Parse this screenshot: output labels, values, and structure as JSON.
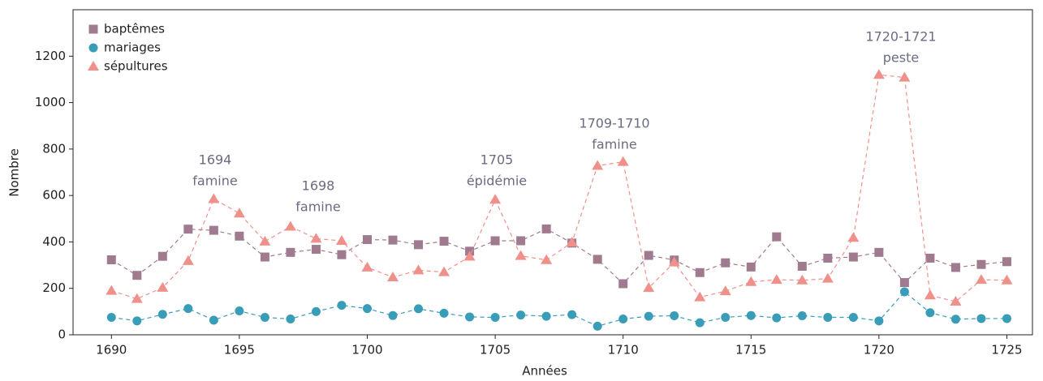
{
  "chart_data": {
    "type": "line",
    "x_label": "Années",
    "y_label": "Nombre",
    "x": [
      1690,
      1691,
      1692,
      1693,
      1694,
      1695,
      1696,
      1697,
      1698,
      1699,
      1700,
      1701,
      1702,
      1703,
      1704,
      1705,
      1706,
      1707,
      1708,
      1709,
      1710,
      1711,
      1712,
      1713,
      1714,
      1715,
      1716,
      1717,
      1718,
      1719,
      1720,
      1721,
      1722,
      1723,
      1724,
      1725
    ],
    "series": [
      {
        "name": "baptêmes",
        "color": "#a07a8e",
        "marker": "square",
        "values": [
          323,
          256,
          338,
          455,
          450,
          425,
          335,
          355,
          368,
          345,
          410,
          408,
          388,
          403,
          360,
          405,
          405,
          456,
          395,
          325,
          220,
          342,
          322,
          268,
          310,
          292,
          422,
          295,
          330,
          335,
          355,
          225,
          330,
          290,
          303,
          315
        ]
      },
      {
        "name": "mariages",
        "color": "#3a9db8",
        "marker": "circle",
        "values": [
          75,
          60,
          88,
          113,
          63,
          103,
          75,
          68,
          100,
          127,
          113,
          83,
          112,
          93,
          77,
          75,
          85,
          80,
          87,
          37,
          68,
          80,
          82,
          52,
          75,
          83,
          73,
          82,
          75,
          75,
          60,
          185,
          95,
          67,
          70,
          70
        ]
      },
      {
        "name": "sépultures",
        "color": "#f0908a",
        "marker": "triangle",
        "values": [
          190,
          155,
          203,
          318,
          585,
          523,
          402,
          466,
          414,
          405,
          290,
          248,
          278,
          270,
          337,
          582,
          340,
          322,
          398,
          728,
          745,
          202,
          312,
          162,
          188,
          228,
          237,
          235,
          242,
          418,
          1120,
          1108,
          170,
          143,
          237,
          235
        ]
      }
    ],
    "annotations": [
      [
        "1694",
        "famine"
      ],
      [
        "1698",
        "famine"
      ],
      [
        "1705",
        "épidémie"
      ],
      [
        "1709-1710",
        "famine"
      ],
      [
        "1720-1721",
        "peste"
      ]
    ],
    "xlim": [
      1688.5,
      1726
    ],
    "xticks": [
      1690,
      1695,
      1700,
      1705,
      1710,
      1715,
      1720,
      1725
    ],
    "ylim": [
      0,
      1400
    ],
    "yticks": [
      0,
      200,
      400,
      600,
      800,
      1000,
      1200
    ],
    "grid": false,
    "legend": "upper left"
  }
}
